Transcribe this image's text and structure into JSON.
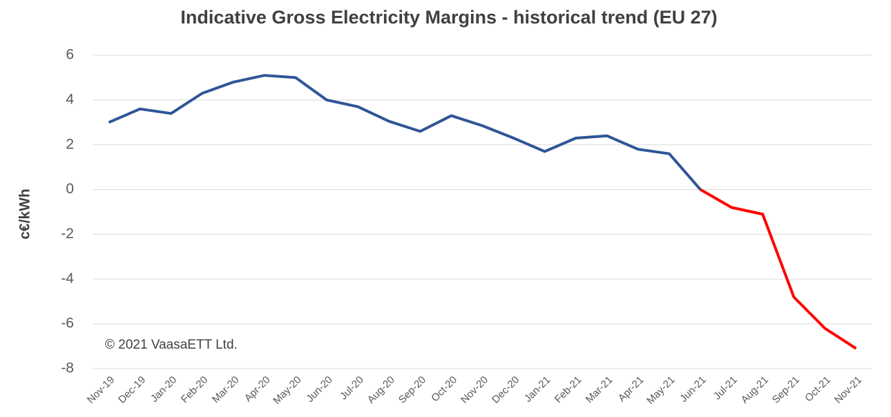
{
  "chart_data": {
    "type": "line",
    "title": "Indicative Gross Electricity Margins - historical trend (EU 27)",
    "ylabel": "c€/kWh",
    "annotation": "© 2021 VaasaETT Ltd.",
    "categories": [
      "Nov-19",
      "Dec-19",
      "Jan-20",
      "Feb-20",
      "Mar-20",
      "Apr-20",
      "May-20",
      "Jun-20",
      "Jul-20",
      "Aug-20",
      "Sep-20",
      "Oct-20",
      "Nov-20",
      "Dec-20",
      "Jan-21",
      "Feb-21",
      "Mar-21",
      "Apr-21",
      "May-21",
      "Jun-21",
      "Jul-21",
      "Aug-21",
      "Sep-21",
      "Oct-21",
      "Nov-21"
    ],
    "series": [
      {
        "color": "#2f5597",
        "values": [
          3.0,
          3.6,
          3.4,
          4.3,
          4.8,
          5.1,
          5.0,
          4.0,
          3.7,
          3.05,
          2.6,
          3.3,
          2.85,
          2.3,
          1.7,
          2.3,
          2.4,
          1.8,
          1.6,
          0.0,
          null,
          null,
          null,
          null,
          null
        ]
      },
      {
        "color": "#ff0000",
        "values": [
          null,
          null,
          null,
          null,
          null,
          null,
          null,
          null,
          null,
          null,
          null,
          null,
          null,
          null,
          null,
          null,
          null,
          null,
          null,
          0.0,
          -0.8,
          -1.1,
          -4.8,
          -6.2,
          -7.1
        ]
      }
    ],
    "ylim": [
      -8,
      6
    ],
    "yticks": [
      -8,
      -6,
      -4,
      -2,
      0,
      2,
      4,
      6
    ],
    "grid": true
  }
}
